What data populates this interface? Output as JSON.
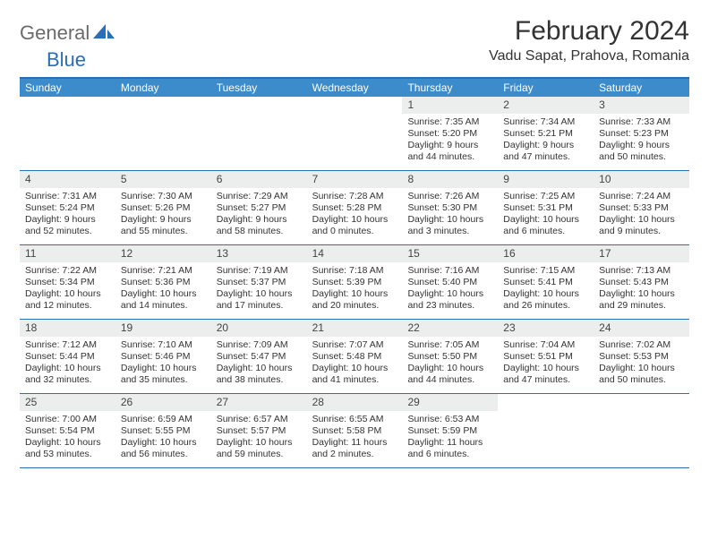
{
  "logo": {
    "text1": "General",
    "text2": "Blue"
  },
  "title": "February 2024",
  "location": "Vadu Sapat, Prahova, Romania",
  "colors": {
    "header_bg": "#3c8ccc",
    "border": "#2a6db8",
    "daynum_bg": "#eceded",
    "text": "#333333",
    "logo_gray": "#6b6b6b",
    "logo_blue": "#2a6db8"
  },
  "daysOfWeek": [
    "Sunday",
    "Monday",
    "Tuesday",
    "Wednesday",
    "Thursday",
    "Friday",
    "Saturday"
  ],
  "weeks": [
    [
      {
        "n": "",
        "sunrise": "",
        "sunset": "",
        "daylight1": "",
        "daylight2": ""
      },
      {
        "n": "",
        "sunrise": "",
        "sunset": "",
        "daylight1": "",
        "daylight2": ""
      },
      {
        "n": "",
        "sunrise": "",
        "sunset": "",
        "daylight1": "",
        "daylight2": ""
      },
      {
        "n": "",
        "sunrise": "",
        "sunset": "",
        "daylight1": "",
        "daylight2": ""
      },
      {
        "n": "1",
        "sunrise": "Sunrise: 7:35 AM",
        "sunset": "Sunset: 5:20 PM",
        "daylight1": "Daylight: 9 hours",
        "daylight2": "and 44 minutes."
      },
      {
        "n": "2",
        "sunrise": "Sunrise: 7:34 AM",
        "sunset": "Sunset: 5:21 PM",
        "daylight1": "Daylight: 9 hours",
        "daylight2": "and 47 minutes."
      },
      {
        "n": "3",
        "sunrise": "Sunrise: 7:33 AM",
        "sunset": "Sunset: 5:23 PM",
        "daylight1": "Daylight: 9 hours",
        "daylight2": "and 50 minutes."
      }
    ],
    [
      {
        "n": "4",
        "sunrise": "Sunrise: 7:31 AM",
        "sunset": "Sunset: 5:24 PM",
        "daylight1": "Daylight: 9 hours",
        "daylight2": "and 52 minutes."
      },
      {
        "n": "5",
        "sunrise": "Sunrise: 7:30 AM",
        "sunset": "Sunset: 5:26 PM",
        "daylight1": "Daylight: 9 hours",
        "daylight2": "and 55 minutes."
      },
      {
        "n": "6",
        "sunrise": "Sunrise: 7:29 AM",
        "sunset": "Sunset: 5:27 PM",
        "daylight1": "Daylight: 9 hours",
        "daylight2": "and 58 minutes."
      },
      {
        "n": "7",
        "sunrise": "Sunrise: 7:28 AM",
        "sunset": "Sunset: 5:28 PM",
        "daylight1": "Daylight: 10 hours",
        "daylight2": "and 0 minutes."
      },
      {
        "n": "8",
        "sunrise": "Sunrise: 7:26 AM",
        "sunset": "Sunset: 5:30 PM",
        "daylight1": "Daylight: 10 hours",
        "daylight2": "and 3 minutes."
      },
      {
        "n": "9",
        "sunrise": "Sunrise: 7:25 AM",
        "sunset": "Sunset: 5:31 PM",
        "daylight1": "Daylight: 10 hours",
        "daylight2": "and 6 minutes."
      },
      {
        "n": "10",
        "sunrise": "Sunrise: 7:24 AM",
        "sunset": "Sunset: 5:33 PM",
        "daylight1": "Daylight: 10 hours",
        "daylight2": "and 9 minutes."
      }
    ],
    [
      {
        "n": "11",
        "sunrise": "Sunrise: 7:22 AM",
        "sunset": "Sunset: 5:34 PM",
        "daylight1": "Daylight: 10 hours",
        "daylight2": "and 12 minutes."
      },
      {
        "n": "12",
        "sunrise": "Sunrise: 7:21 AM",
        "sunset": "Sunset: 5:36 PM",
        "daylight1": "Daylight: 10 hours",
        "daylight2": "and 14 minutes."
      },
      {
        "n": "13",
        "sunrise": "Sunrise: 7:19 AM",
        "sunset": "Sunset: 5:37 PM",
        "daylight1": "Daylight: 10 hours",
        "daylight2": "and 17 minutes."
      },
      {
        "n": "14",
        "sunrise": "Sunrise: 7:18 AM",
        "sunset": "Sunset: 5:39 PM",
        "daylight1": "Daylight: 10 hours",
        "daylight2": "and 20 minutes."
      },
      {
        "n": "15",
        "sunrise": "Sunrise: 7:16 AM",
        "sunset": "Sunset: 5:40 PM",
        "daylight1": "Daylight: 10 hours",
        "daylight2": "and 23 minutes."
      },
      {
        "n": "16",
        "sunrise": "Sunrise: 7:15 AM",
        "sunset": "Sunset: 5:41 PM",
        "daylight1": "Daylight: 10 hours",
        "daylight2": "and 26 minutes."
      },
      {
        "n": "17",
        "sunrise": "Sunrise: 7:13 AM",
        "sunset": "Sunset: 5:43 PM",
        "daylight1": "Daylight: 10 hours",
        "daylight2": "and 29 minutes."
      }
    ],
    [
      {
        "n": "18",
        "sunrise": "Sunrise: 7:12 AM",
        "sunset": "Sunset: 5:44 PM",
        "daylight1": "Daylight: 10 hours",
        "daylight2": "and 32 minutes."
      },
      {
        "n": "19",
        "sunrise": "Sunrise: 7:10 AM",
        "sunset": "Sunset: 5:46 PM",
        "daylight1": "Daylight: 10 hours",
        "daylight2": "and 35 minutes."
      },
      {
        "n": "20",
        "sunrise": "Sunrise: 7:09 AM",
        "sunset": "Sunset: 5:47 PM",
        "daylight1": "Daylight: 10 hours",
        "daylight2": "and 38 minutes."
      },
      {
        "n": "21",
        "sunrise": "Sunrise: 7:07 AM",
        "sunset": "Sunset: 5:48 PM",
        "daylight1": "Daylight: 10 hours",
        "daylight2": "and 41 minutes."
      },
      {
        "n": "22",
        "sunrise": "Sunrise: 7:05 AM",
        "sunset": "Sunset: 5:50 PM",
        "daylight1": "Daylight: 10 hours",
        "daylight2": "and 44 minutes."
      },
      {
        "n": "23",
        "sunrise": "Sunrise: 7:04 AM",
        "sunset": "Sunset: 5:51 PM",
        "daylight1": "Daylight: 10 hours",
        "daylight2": "and 47 minutes."
      },
      {
        "n": "24",
        "sunrise": "Sunrise: 7:02 AM",
        "sunset": "Sunset: 5:53 PM",
        "daylight1": "Daylight: 10 hours",
        "daylight2": "and 50 minutes."
      }
    ],
    [
      {
        "n": "25",
        "sunrise": "Sunrise: 7:00 AM",
        "sunset": "Sunset: 5:54 PM",
        "daylight1": "Daylight: 10 hours",
        "daylight2": "and 53 minutes."
      },
      {
        "n": "26",
        "sunrise": "Sunrise: 6:59 AM",
        "sunset": "Sunset: 5:55 PM",
        "daylight1": "Daylight: 10 hours",
        "daylight2": "and 56 minutes."
      },
      {
        "n": "27",
        "sunrise": "Sunrise: 6:57 AM",
        "sunset": "Sunset: 5:57 PM",
        "daylight1": "Daylight: 10 hours",
        "daylight2": "and 59 minutes."
      },
      {
        "n": "28",
        "sunrise": "Sunrise: 6:55 AM",
        "sunset": "Sunset: 5:58 PM",
        "daylight1": "Daylight: 11 hours",
        "daylight2": "and 2 minutes."
      },
      {
        "n": "29",
        "sunrise": "Sunrise: 6:53 AM",
        "sunset": "Sunset: 5:59 PM",
        "daylight1": "Daylight: 11 hours",
        "daylight2": "and 6 minutes."
      },
      {
        "n": "",
        "sunrise": "",
        "sunset": "",
        "daylight1": "",
        "daylight2": ""
      },
      {
        "n": "",
        "sunrise": "",
        "sunset": "",
        "daylight1": "",
        "daylight2": ""
      }
    ]
  ]
}
